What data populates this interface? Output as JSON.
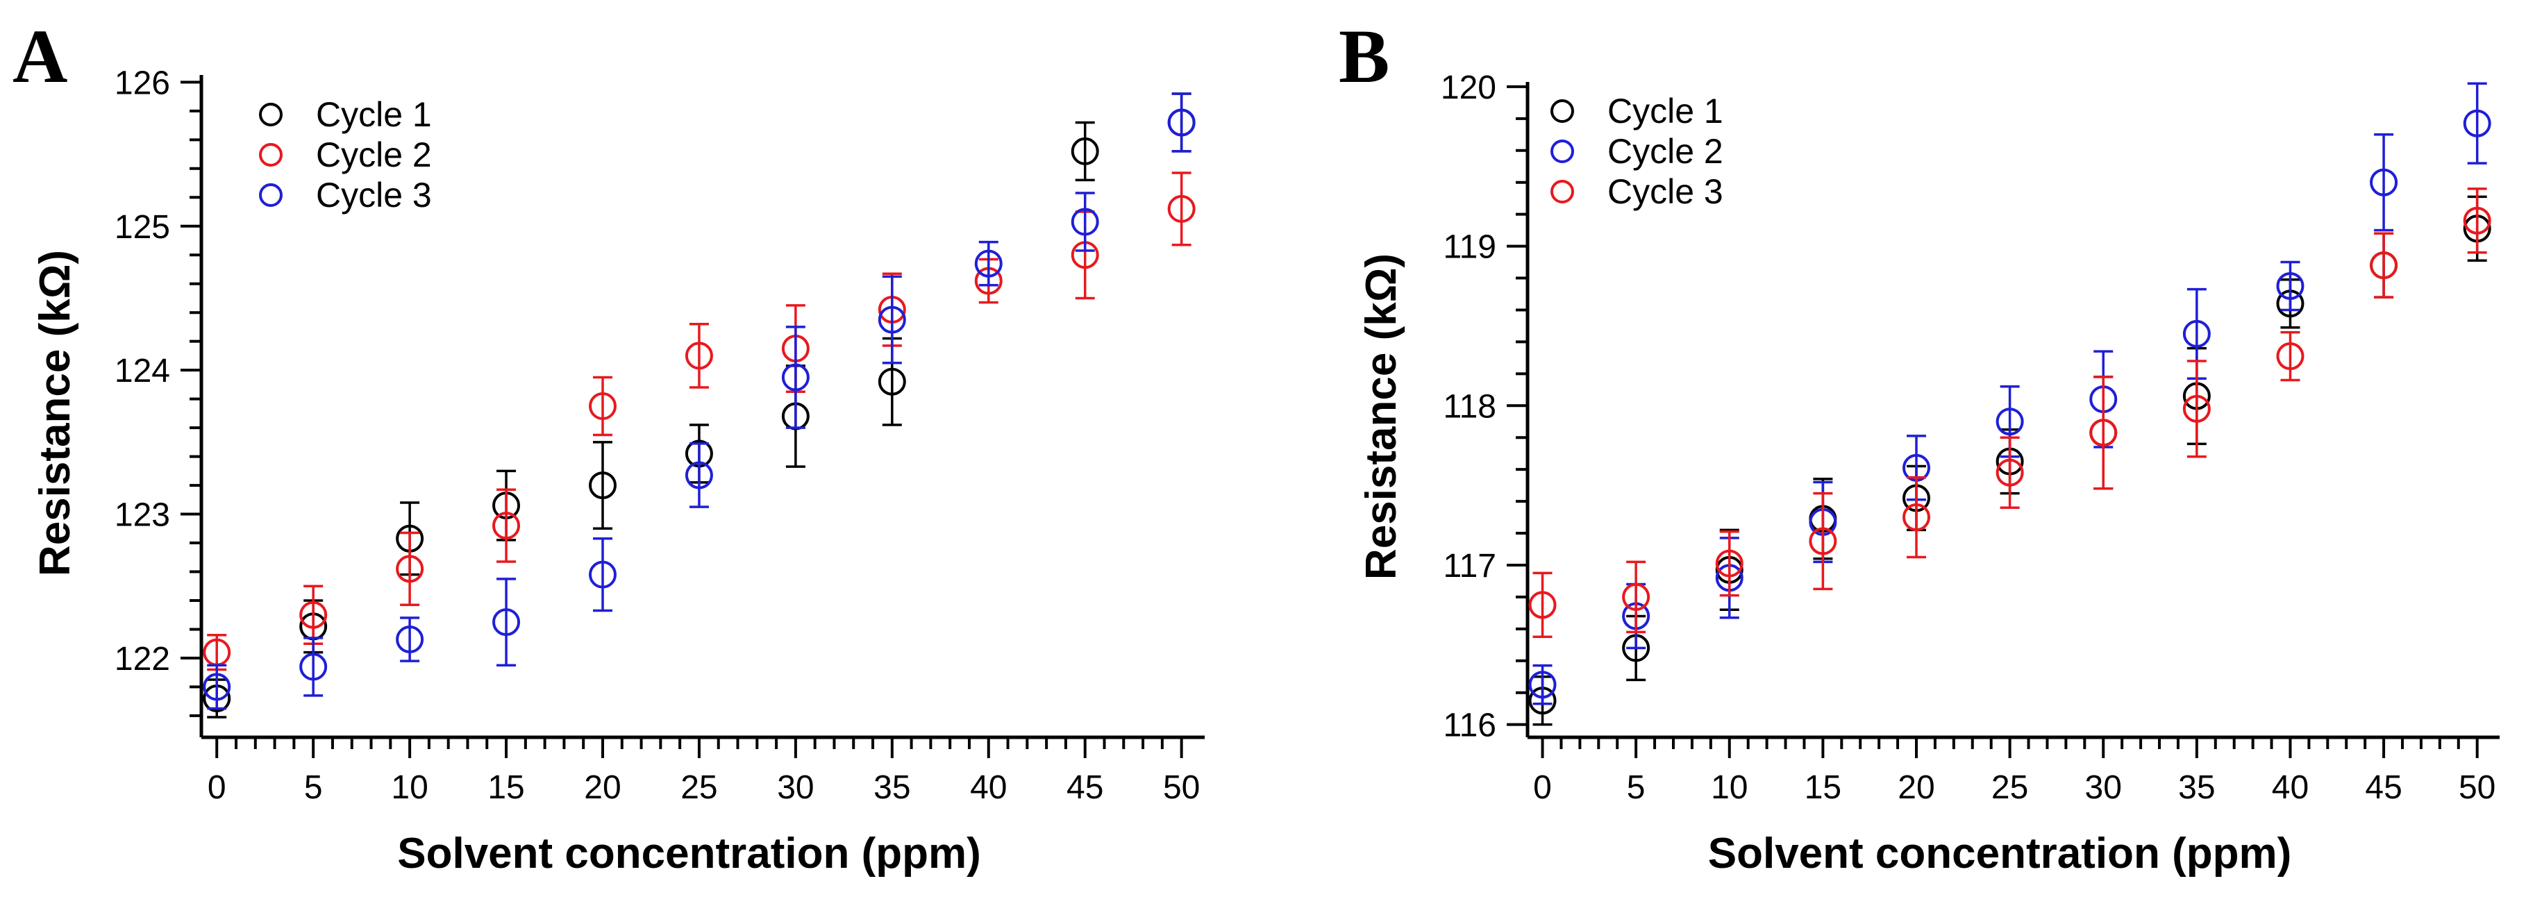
{
  "chart_data": [
    {
      "panel": "A",
      "type": "scatter",
      "xlabel": "Solvent concentration (ppm)",
      "ylabel": "Resistance (kΩ)",
      "xlim": [
        -0.8,
        51.2
      ],
      "ylim": [
        121.45,
        126.05
      ],
      "xticks": [
        0,
        5,
        10,
        15,
        20,
        25,
        30,
        35,
        40,
        45,
        50
      ],
      "yticks": [
        122,
        123,
        124,
        125,
        126
      ],
      "legend": "top-left",
      "series": [
        {
          "name": "Cycle 1",
          "color": "#000000",
          "x": [
            0,
            5,
            10,
            15,
            20,
            25,
            30,
            35,
            45,
            50
          ],
          "y": [
            121.72,
            122.22,
            122.83,
            123.06,
            123.2,
            123.42,
            123.68,
            123.92,
            125.52,
            125.72
          ],
          "err": [
            0.13,
            0.18,
            0.25,
            0.24,
            0.3,
            0.2,
            0.35,
            0.3,
            0.2,
            0.2
          ]
        },
        {
          "name": "Cycle 2",
          "color": "#e8191e",
          "x": [
            0,
            5,
            10,
            15,
            20,
            25,
            30,
            35,
            40,
            45,
            50
          ],
          "y": [
            122.04,
            122.3,
            122.62,
            122.92,
            123.75,
            124.1,
            124.15,
            124.42,
            124.62,
            124.8,
            125.12
          ],
          "err": [
            0.12,
            0.2,
            0.25,
            0.25,
            0.2,
            0.22,
            0.3,
            0.25,
            0.15,
            0.3,
            0.25
          ]
        },
        {
          "name": "Cycle 3",
          "color": "#1f1fd6",
          "x": [
            0,
            5,
            10,
            15,
            20,
            25,
            30,
            35,
            40,
            45,
            50
          ],
          "y": [
            121.8,
            121.94,
            122.13,
            122.25,
            122.58,
            123.27,
            123.95,
            124.35,
            124.74,
            125.03,
            125.72
          ],
          "err": [
            0.15,
            0.2,
            0.15,
            0.3,
            0.25,
            0.22,
            0.35,
            0.3,
            0.15,
            0.2,
            0.2
          ]
        }
      ]
    },
    {
      "panel": "B",
      "type": "scatter",
      "xlabel": "Solvent concentration (ppm)",
      "ylabel": "Resistance (kΩ)",
      "xlim": [
        -0.8,
        51.2
      ],
      "ylim": [
        115.92,
        120.03
      ],
      "xticks": [
        0,
        5,
        10,
        15,
        20,
        25,
        30,
        35,
        40,
        45,
        50
      ],
      "yticks": [
        116,
        117,
        118,
        119,
        120
      ],
      "legend": "top-left",
      "series": [
        {
          "name": "Cycle 1",
          "color": "#000000",
          "x": [
            0,
            5,
            10,
            15,
            20,
            25,
            30,
            35,
            40,
            45,
            50
          ],
          "y": [
            116.15,
            116.48,
            116.97,
            117.29,
            117.42,
            117.65,
            117.83,
            118.06,
            118.64,
            118.88,
            119.11
          ],
          "err": [
            0.15,
            0.2,
            0.25,
            0.25,
            0.2,
            0.2,
            0.35,
            0.3,
            0.15,
            0.2,
            0.2
          ]
        },
        {
          "name": "Cycle 2",
          "color": "#1f1fd6",
          "x": [
            0,
            5,
            10,
            15,
            20,
            25,
            30,
            35,
            40,
            45,
            50
          ],
          "y": [
            116.25,
            116.68,
            116.92,
            117.27,
            117.61,
            117.9,
            118.04,
            118.45,
            118.75,
            119.4,
            119.77
          ],
          "err": [
            0.12,
            0.2,
            0.25,
            0.25,
            0.2,
            0.22,
            0.3,
            0.28,
            0.15,
            0.3,
            0.25
          ]
        },
        {
          "name": "Cycle 3",
          "color": "#e8191e",
          "x": [
            0,
            5,
            10,
            15,
            20,
            25,
            30,
            35,
            40,
            45,
            50
          ],
          "y": [
            116.75,
            116.8,
            117.01,
            117.15,
            117.3,
            117.58,
            117.83,
            117.98,
            118.31,
            118.88,
            119.16
          ],
          "err": [
            0.2,
            0.22,
            0.2,
            0.3,
            0.25,
            0.22,
            0.35,
            0.3,
            0.15,
            0.2,
            0.2
          ]
        }
      ]
    }
  ]
}
